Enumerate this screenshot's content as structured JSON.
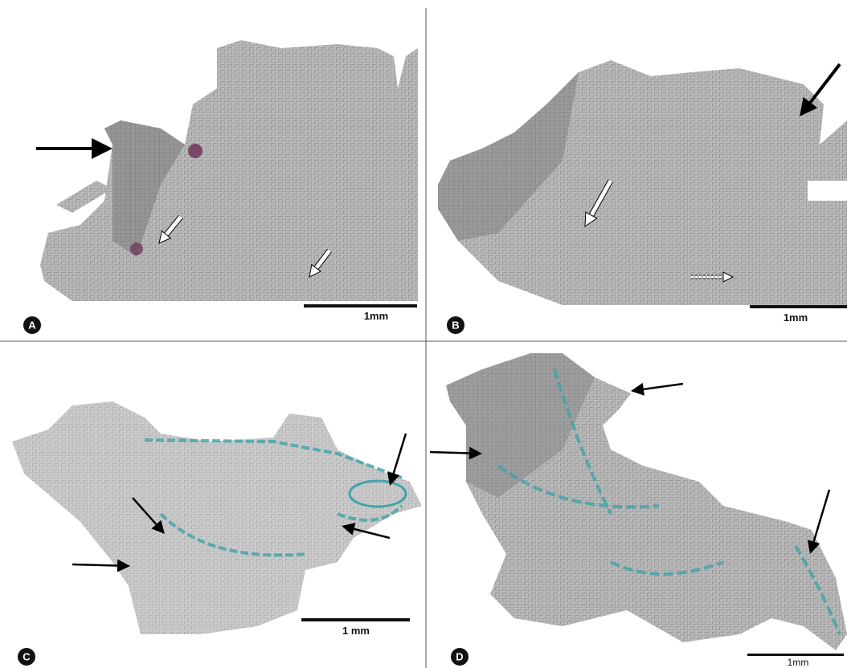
{
  "panels": [
    {
      "label": "A",
      "scale_label": "1mm"
    },
    {
      "label": "B",
      "scale_label": "1mm"
    },
    {
      "label": "C",
      "scale_label": "1 mm"
    },
    {
      "label": "D",
      "scale_label": "1mm"
    }
  ]
}
